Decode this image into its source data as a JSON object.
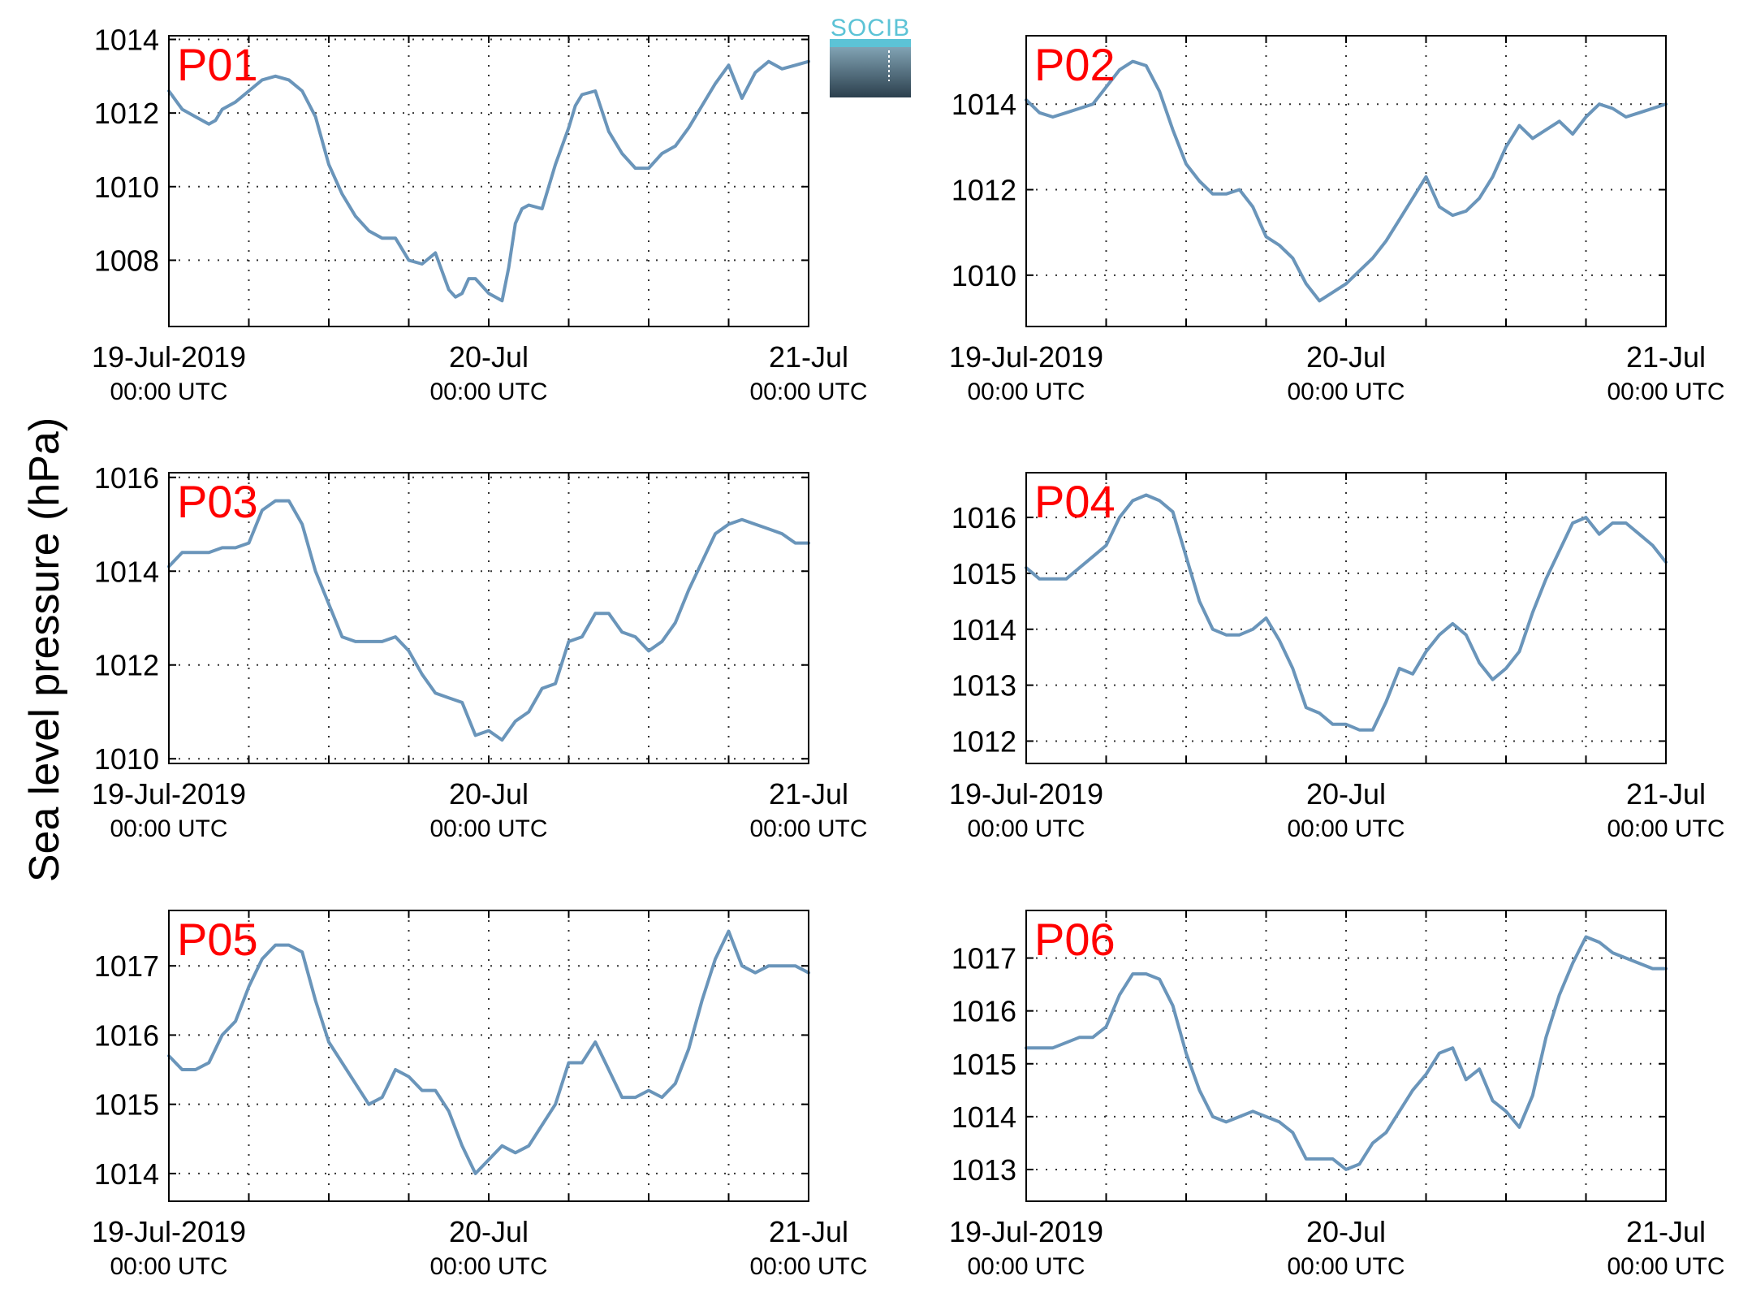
{
  "ylabel": "Sea level pressure (hPa)",
  "logo": {
    "text": "SOCIB"
  },
  "colors": {
    "line": "#6a95ba",
    "panel_tag": "#ff0000",
    "grid": "#333333",
    "logo_text": "#5cc3d6"
  },
  "x_ticks": [
    {
      "top": "19-Jul-2019",
      "bottom": "00:00 UTC"
    },
    {
      "top": "20-Jul",
      "bottom": "00:00 UTC"
    },
    {
      "top": "21-Jul",
      "bottom": "00:00 UTC"
    }
  ],
  "chart_data": [
    {
      "type": "line",
      "label": "P01",
      "x_unit": "hours since 19-Jul-2019 00:00 UTC",
      "xlim": [
        0,
        48
      ],
      "ylim": [
        1006.2,
        1014.1
      ],
      "yticks": [
        1008,
        1010,
        1012,
        1014
      ],
      "grid": true,
      "x": [
        0,
        1,
        2,
        3,
        3.5,
        4,
        5,
        6,
        7,
        8,
        9,
        10,
        11,
        12,
        13,
        14,
        15,
        16,
        17,
        18,
        19,
        20,
        21,
        21.5,
        22,
        22.5,
        23,
        24,
        25,
        25.5,
        26,
        26.5,
        27,
        28,
        29,
        30,
        30.5,
        31,
        32,
        33,
        34,
        35,
        36,
        37,
        38,
        39,
        40,
        41,
        42,
        43,
        44,
        45,
        46,
        47,
        48
      ],
      "values": [
        1012.6,
        1012.1,
        1011.9,
        1011.7,
        1011.8,
        1012.1,
        1012.3,
        1012.6,
        1012.9,
        1013.0,
        1012.9,
        1012.6,
        1011.9,
        1010.6,
        1009.8,
        1009.2,
        1008.8,
        1008.6,
        1008.6,
        1008.0,
        1007.9,
        1008.2,
        1007.2,
        1007.0,
        1007.1,
        1007.5,
        1007.5,
        1007.1,
        1006.9,
        1007.8,
        1009.0,
        1009.4,
        1009.5,
        1009.4,
        1010.6,
        1011.6,
        1012.2,
        1012.5,
        1012.6,
        1011.5,
        1010.9,
        1010.5,
        1010.5,
        1010.9,
        1011.1,
        1011.6,
        1012.2,
        1012.8,
        1013.3,
        1012.4,
        1013.1,
        1013.4,
        1013.2,
        1013.3,
        1013.4
      ]
    },
    {
      "type": "line",
      "label": "P02",
      "x_unit": "hours since 19-Jul-2019 00:00 UTC",
      "xlim": [
        0,
        48
      ],
      "ylim": [
        1008.8,
        1015.6
      ],
      "yticks": [
        1010,
        1012,
        1014
      ],
      "grid": true,
      "x": [
        0,
        1,
        2,
        3,
        4,
        5,
        6,
        7,
        8,
        9,
        10,
        11,
        12,
        13,
        14,
        15,
        16,
        17,
        18,
        19,
        20,
        21,
        22,
        23,
        24,
        25,
        26,
        27,
        28,
        29,
        30,
        31,
        32,
        33,
        34,
        35,
        36,
        37,
        38,
        39,
        40,
        41,
        42,
        43,
        44,
        45,
        46,
        47,
        48
      ],
      "values": [
        1014.1,
        1013.8,
        1013.7,
        1013.8,
        1013.9,
        1014.0,
        1014.4,
        1014.8,
        1015.0,
        1014.9,
        1014.3,
        1013.4,
        1012.6,
        1012.2,
        1011.9,
        1011.9,
        1012.0,
        1011.6,
        1010.9,
        1010.7,
        1010.4,
        1009.8,
        1009.4,
        1009.6,
        1009.8,
        1010.1,
        1010.4,
        1010.8,
        1011.3,
        1011.8,
        1012.3,
        1011.6,
        1011.4,
        1011.5,
        1011.8,
        1012.3,
        1013.0,
        1013.5,
        1013.2,
        1013.4,
        1013.6,
        1013.3,
        1013.7,
        1014.0,
        1013.9,
        1013.7,
        1013.8,
        1013.9,
        1014.0
      ]
    },
    {
      "type": "line",
      "label": "P03",
      "x_unit": "hours since 19-Jul-2019 00:00 UTC",
      "xlim": [
        0,
        48
      ],
      "ylim": [
        1009.9,
        1016.1
      ],
      "yticks": [
        1010,
        1012,
        1014,
        1016
      ],
      "grid": true,
      "x": [
        0,
        1,
        2,
        3,
        4,
        5,
        6,
        7,
        8,
        9,
        10,
        11,
        12,
        13,
        14,
        15,
        16,
        17,
        18,
        19,
        20,
        21,
        22,
        23,
        24,
        25,
        26,
        27,
        28,
        29,
        30,
        31,
        32,
        33,
        34,
        35,
        36,
        37,
        38,
        39,
        40,
        41,
        42,
        43,
        44,
        45,
        46,
        47,
        48
      ],
      "values": [
        1014.1,
        1014.4,
        1014.4,
        1014.4,
        1014.5,
        1014.5,
        1014.6,
        1015.3,
        1015.5,
        1015.5,
        1015.0,
        1014.0,
        1013.3,
        1012.6,
        1012.5,
        1012.5,
        1012.5,
        1012.6,
        1012.3,
        1011.8,
        1011.4,
        1011.3,
        1011.2,
        1010.5,
        1010.6,
        1010.4,
        1010.8,
        1011.0,
        1011.5,
        1011.6,
        1012.5,
        1012.6,
        1013.1,
        1013.1,
        1012.7,
        1012.6,
        1012.3,
        1012.5,
        1012.9,
        1013.6,
        1014.2,
        1014.8,
        1015.0,
        1015.1,
        1015.0,
        1014.9,
        1014.8,
        1014.6,
        1014.6
      ]
    },
    {
      "type": "line",
      "label": "P04",
      "x_unit": "hours since 19-Jul-2019 00:00 UTC",
      "xlim": [
        0,
        48
      ],
      "ylim": [
        1011.6,
        1016.8
      ],
      "yticks": [
        1012,
        1013,
        1014,
        1015,
        1016
      ],
      "grid": true,
      "x": [
        0,
        1,
        2,
        3,
        4,
        5,
        6,
        7,
        8,
        9,
        10,
        11,
        12,
        13,
        14,
        15,
        16,
        17,
        18,
        19,
        20,
        21,
        22,
        23,
        24,
        25,
        26,
        27,
        28,
        29,
        30,
        31,
        32,
        33,
        34,
        35,
        36,
        37,
        38,
        39,
        40,
        41,
        42,
        43,
        44,
        45,
        46,
        47,
        48
      ],
      "values": [
        1015.1,
        1014.9,
        1014.9,
        1014.9,
        1015.1,
        1015.3,
        1015.5,
        1016.0,
        1016.3,
        1016.4,
        1016.3,
        1016.1,
        1015.3,
        1014.5,
        1014.0,
        1013.9,
        1013.9,
        1014.0,
        1014.2,
        1013.8,
        1013.3,
        1012.6,
        1012.5,
        1012.3,
        1012.3,
        1012.2,
        1012.2,
        1012.7,
        1013.3,
        1013.2,
        1013.6,
        1013.9,
        1014.1,
        1013.9,
        1013.4,
        1013.1,
        1013.3,
        1013.6,
        1014.3,
        1014.9,
        1015.4,
        1015.9,
        1016.0,
        1015.7,
        1015.9,
        1015.9,
        1015.7,
        1015.5,
        1015.2
      ]
    },
    {
      "type": "line",
      "label": "P05",
      "x_unit": "hours since 19-Jul-2019 00:00 UTC",
      "xlim": [
        0,
        48
      ],
      "ylim": [
        1013.6,
        1017.8
      ],
      "yticks": [
        1014,
        1015,
        1016,
        1017
      ],
      "grid": true,
      "x": [
        0,
        1,
        2,
        3,
        4,
        5,
        6,
        7,
        8,
        9,
        10,
        11,
        12,
        13,
        14,
        15,
        16,
        17,
        18,
        19,
        20,
        21,
        22,
        23,
        24,
        25,
        26,
        27,
        28,
        29,
        30,
        31,
        32,
        33,
        34,
        35,
        36,
        37,
        38,
        39,
        40,
        41,
        42,
        43,
        44,
        45,
        46,
        47,
        48
      ],
      "values": [
        1015.7,
        1015.5,
        1015.5,
        1015.6,
        1016.0,
        1016.2,
        1016.7,
        1017.1,
        1017.3,
        1017.3,
        1017.2,
        1016.5,
        1015.9,
        1015.6,
        1015.3,
        1015.0,
        1015.1,
        1015.5,
        1015.4,
        1015.2,
        1015.2,
        1014.9,
        1014.4,
        1014.0,
        1014.2,
        1014.4,
        1014.3,
        1014.4,
        1014.7,
        1015.0,
        1015.6,
        1015.6,
        1015.9,
        1015.5,
        1015.1,
        1015.1,
        1015.2,
        1015.1,
        1015.3,
        1015.8,
        1016.5,
        1017.1,
        1017.5,
        1017.0,
        1016.9,
        1017.0,
        1017.0,
        1017.0,
        1016.9
      ]
    },
    {
      "type": "line",
      "label": "P06",
      "x_unit": "hours since 19-Jul-2019 00:00 UTC",
      "xlim": [
        0,
        48
      ],
      "ylim": [
        1012.4,
        1017.9
      ],
      "yticks": [
        1013,
        1014,
        1015,
        1016,
        1017
      ],
      "grid": true,
      "x": [
        0,
        1,
        2,
        3,
        4,
        5,
        6,
        7,
        8,
        9,
        10,
        11,
        12,
        13,
        14,
        15,
        16,
        17,
        18,
        19,
        20,
        21,
        22,
        23,
        24,
        25,
        26,
        27,
        28,
        29,
        30,
        31,
        32,
        33,
        34,
        35,
        36,
        37,
        38,
        39,
        40,
        41,
        42,
        43,
        44,
        45,
        46,
        47,
        48
      ],
      "values": [
        1015.3,
        1015.3,
        1015.3,
        1015.4,
        1015.5,
        1015.5,
        1015.7,
        1016.3,
        1016.7,
        1016.7,
        1016.6,
        1016.1,
        1015.2,
        1014.5,
        1014.0,
        1013.9,
        1014.0,
        1014.1,
        1014.0,
        1013.9,
        1013.7,
        1013.2,
        1013.2,
        1013.2,
        1013.0,
        1013.1,
        1013.5,
        1013.7,
        1014.1,
        1014.5,
        1014.8,
        1015.2,
        1015.3,
        1014.7,
        1014.9,
        1014.3,
        1014.1,
        1013.8,
        1014.4,
        1015.5,
        1016.3,
        1016.9,
        1017.4,
        1017.3,
        1017.1,
        1017.0,
        1016.9,
        1016.8,
        1016.8
      ]
    }
  ]
}
